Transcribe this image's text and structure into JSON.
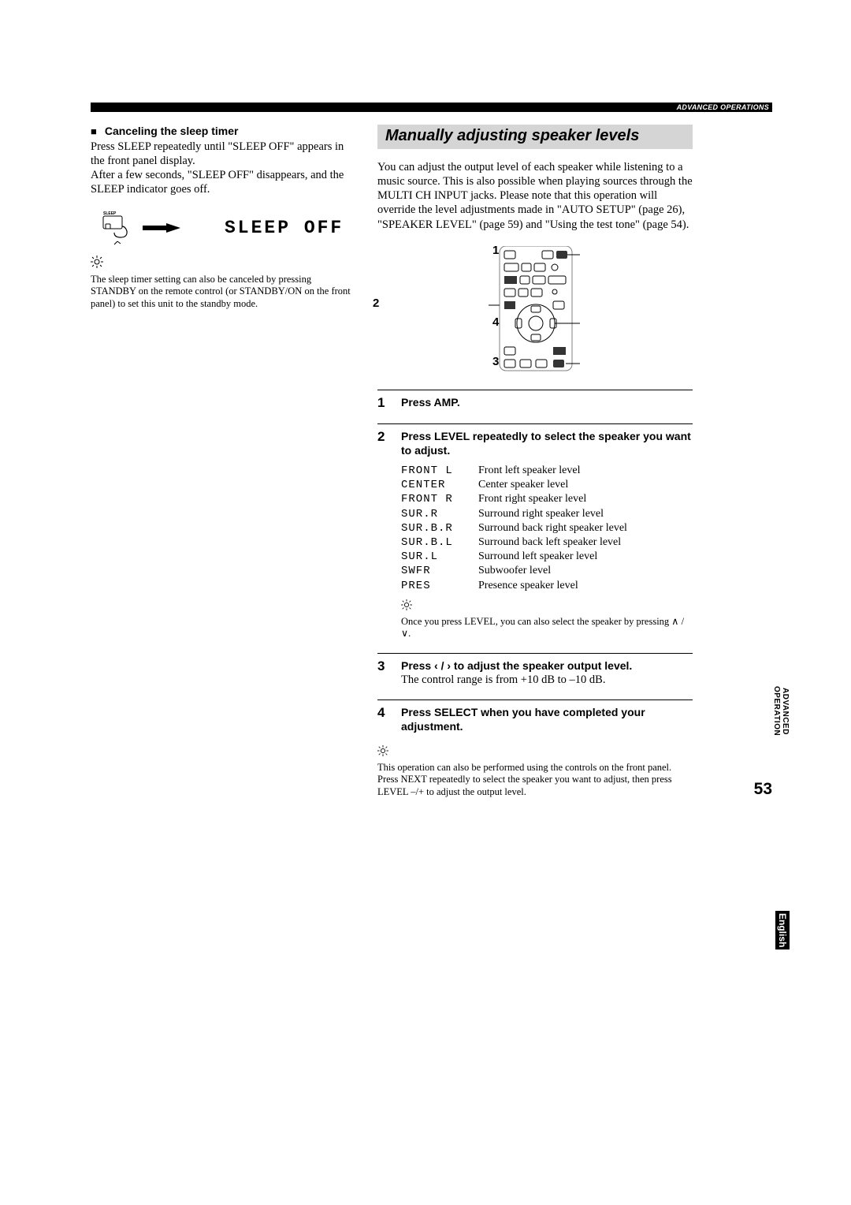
{
  "header": {
    "section_label": "ADVANCED OPERATIONS"
  },
  "left": {
    "cancel_heading": "Canceling the sleep timer",
    "cancel_para1": "Press SLEEP repeatedly until \"SLEEP OFF\" appears in the front panel display.",
    "cancel_para2": "After a few seconds, \"SLEEP OFF\" disappears, and the SLEEP indicator goes off.",
    "sleep_btn_label": "SLEEP",
    "sleep_off_display": "SLEEP OFF",
    "tip_text": "The sleep timer setting can also be canceled by pressing STANDBY on the remote control (or STANDBY/ON on the front panel) to set this unit to the standby mode."
  },
  "right": {
    "title": "Manually adjusting speaker levels",
    "intro": "You can adjust the output level of each speaker while listening to a music source. This is also possible when playing sources through the MULTI CH INPUT jacks. Please note that this operation will override the level adjustments made in \"AUTO SETUP\" (page 26), \"SPEAKER LEVEL\" (page 59) and \"Using the test tone\" (page 54).",
    "callout": {
      "n1": "1",
      "n2": "2",
      "n3": "3",
      "n4": "4"
    },
    "steps": {
      "s1": {
        "n": "1",
        "head": "Press AMP."
      },
      "s2": {
        "n": "2",
        "head": "Press LEVEL repeatedly to select the speaker you want to adjust."
      },
      "s3": {
        "n": "3",
        "head": "Press ‹ / › to adjust the speaker output level.",
        "body": "The control range is from +10 dB to –10 dB."
      },
      "s4": {
        "n": "4",
        "head": "Press SELECT when you have completed your adjustment."
      }
    },
    "speakers": [
      {
        "code": "FRONT L",
        "desc": "Front left speaker level"
      },
      {
        "code": "CENTER",
        "desc": "Center speaker level"
      },
      {
        "code": "FRONT R",
        "desc": "Front right speaker level"
      },
      {
        "code": "SUR.R",
        "desc": "Surround right speaker level"
      },
      {
        "code": "SUR.B.R",
        "desc": "Surround back right speaker level"
      },
      {
        "code": "SUR.B.L",
        "desc": "Surround back left speaker level"
      },
      {
        "code": "SUR.L",
        "desc": "Surround left speaker level"
      },
      {
        "code": "SWFR",
        "desc": "Subwoofer level"
      },
      {
        "code": "PRES",
        "desc": "Presence speaker level"
      }
    ],
    "tip_after_table": "Once you press LEVEL, you can also select the speaker by pressing ∧ / ∨.",
    "bottom_tip": "This operation can also be performed using the controls on the front panel. Press NEXT repeatedly to select the speaker you want to adjust, then press LEVEL –/+ to adjust the output level."
  },
  "side": {
    "advanced": "ADVANCED",
    "operation": "OPERATION",
    "english": "English"
  },
  "page_number": "53"
}
